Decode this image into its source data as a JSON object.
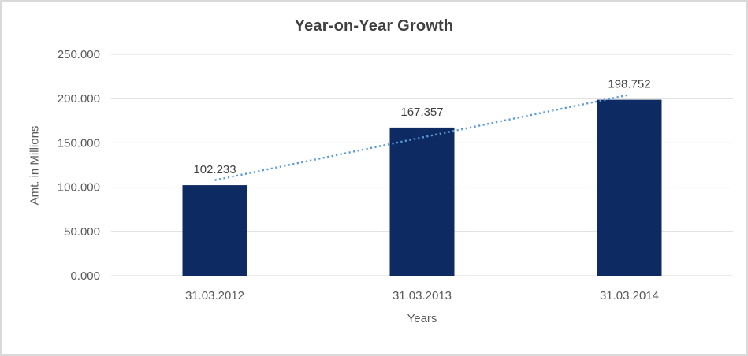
{
  "chart_data": {
    "type": "bar",
    "title": "Year-on-Year Growth",
    "xlabel": "Years",
    "ylabel": "Amt. in Millions",
    "categories": [
      "31.03.2012",
      "31.03.2013",
      "31.03.2014"
    ],
    "values": [
      102.233,
      167.357,
      198.752
    ],
    "data_labels": [
      "102.233",
      "167.357",
      "198.752"
    ],
    "ylim": [
      0,
      250
    ],
    "ytick_step": 50,
    "ytick_labels": [
      "0.000",
      "50.000",
      "100.000",
      "150.000",
      "200.000",
      "250.000"
    ],
    "grid": true,
    "legend": "none",
    "trendline": {
      "type": "linear",
      "style": "dotted",
      "color": "#5B9BD5"
    },
    "colors": {
      "bar": "#0d2a63",
      "gridline": "#d9d9d9",
      "title_text": "#404040",
      "axis_text": "#595959",
      "label_text": "#404040",
      "background": "#ffffff",
      "border": "#d9d9d9"
    }
  }
}
